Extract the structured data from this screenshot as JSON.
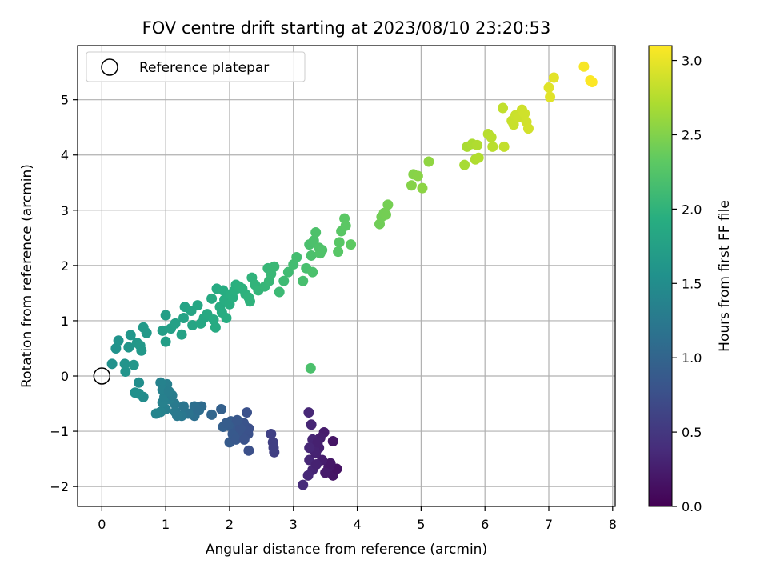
{
  "chart_data": {
    "type": "scatter",
    "title": "FOV centre drift starting at 2023/08/10 23:20:53",
    "xlabel": "Angular distance from reference (arcmin)",
    "ylabel": "Rotation from reference (arcmin)",
    "xlim": [
      -0.38,
      8.04
    ],
    "ylim": [
      -2.36,
      5.98
    ],
    "xticks": [
      0,
      1,
      2,
      3,
      4,
      5,
      6,
      7,
      8
    ],
    "yticks": [
      -2,
      -1,
      0,
      1,
      2,
      3,
      4,
      5
    ],
    "grid": true,
    "legend": {
      "placement": "upper-left",
      "entries": [
        "Reference platepar"
      ]
    },
    "reference_point": {
      "x": 0,
      "y": 0
    },
    "colorbar": {
      "label": "Hours from first FF file",
      "colormap": "viridis",
      "range": [
        0.0,
        3.1
      ],
      "ticks": [
        "0.0",
        "0.5",
        "1.0",
        "1.5",
        "2.0",
        "2.5",
        "3.0"
      ]
    },
    "series": [
      {
        "points": [
          [
            3.62,
            -1.8
          ],
          [
            3.68,
            -1.68
          ],
          [
            3.55,
            -1.65
          ],
          [
            3.5,
            -1.75
          ],
          [
            3.58,
            -1.58
          ],
          [
            3.45,
            -1.52
          ],
          [
            3.62,
            -1.18
          ],
          [
            3.48,
            -1.02
          ],
          [
            3.4,
            -1.3
          ],
          [
            3.15,
            -1.97
          ],
          [
            3.3,
            -1.7
          ],
          [
            3.25,
            -1.52
          ],
          [
            3.42,
            -1.12
          ],
          [
            3.28,
            -0.88
          ],
          [
            3.24,
            -0.66
          ],
          [
            3.35,
            -1.4
          ],
          [
            3.23,
            -1.8
          ],
          [
            3.3,
            -1.15
          ],
          [
            3.27,
            0.14
          ],
          [
            3.33,
            -1.35
          ],
          [
            3.38,
            -1.2
          ],
          [
            3.25,
            -1.3
          ],
          [
            3.36,
            -1.6
          ],
          [
            2.7,
            -1.38
          ],
          [
            2.65,
            -1.05
          ],
          [
            2.68,
            -1.2
          ],
          [
            2.69,
            -1.3
          ],
          [
            2.3,
            -1.35
          ],
          [
            2.29,
            -1.05
          ],
          [
            2.3,
            -0.95
          ],
          [
            2.27,
            -0.66
          ],
          [
            2.22,
            -0.85
          ],
          [
            2.25,
            -0.98
          ],
          [
            2.15,
            -1.1
          ],
          [
            2.08,
            -0.88
          ],
          [
            2.02,
            -0.82
          ],
          [
            1.98,
            -0.9
          ],
          [
            1.9,
            -0.92
          ],
          [
            1.87,
            -0.6
          ],
          [
            2.0,
            -1.2
          ],
          [
            2.05,
            -1.05
          ],
          [
            2.1,
            -1.15
          ],
          [
            2.17,
            -0.95
          ],
          [
            2.23,
            -1.15
          ],
          [
            1.95,
            -0.85
          ],
          [
            2.12,
            -0.8
          ],
          [
            1.72,
            -0.7
          ],
          [
            1.56,
            -0.55
          ],
          [
            1.45,
            -0.55
          ],
          [
            1.45,
            -0.72
          ],
          [
            1.52,
            -0.62
          ],
          [
            1.35,
            -0.68
          ],
          [
            1.25,
            -0.72
          ],
          [
            1.28,
            -0.55
          ],
          [
            1.14,
            -0.5
          ],
          [
            1.15,
            -0.65
          ],
          [
            1.18,
            -0.72
          ],
          [
            1.05,
            -0.42
          ],
          [
            1.0,
            -0.6
          ],
          [
            0.92,
            -0.65
          ],
          [
            0.85,
            -0.68
          ],
          [
            0.95,
            -0.48
          ],
          [
            0.98,
            -0.38
          ],
          [
            1.1,
            -0.35
          ],
          [
            1.02,
            -0.15
          ],
          [
            0.92,
            -0.12
          ],
          [
            0.95,
            -0.25
          ],
          [
            1.05,
            -0.28
          ],
          [
            0.65,
            -0.38
          ],
          [
            0.58,
            -0.32
          ],
          [
            0.52,
            -0.3
          ],
          [
            0.58,
            -0.12
          ],
          [
            0.37,
            0.08
          ],
          [
            0.36,
            0.22
          ],
          [
            0.5,
            0.2
          ],
          [
            0.16,
            0.22
          ],
          [
            0.22,
            0.5
          ],
          [
            0.26,
            0.64
          ],
          [
            0.42,
            0.52
          ],
          [
            0.45,
            0.74
          ],
          [
            0.55,
            0.6
          ],
          [
            0.6,
            0.55
          ],
          [
            0.62,
            0.46
          ],
          [
            0.65,
            0.88
          ],
          [
            0.7,
            0.78
          ],
          [
            0.95,
            0.82
          ],
          [
            1.0,
            0.62
          ],
          [
            1.0,
            1.1
          ],
          [
            1.08,
            0.86
          ],
          [
            1.15,
            0.95
          ],
          [
            1.25,
            0.75
          ],
          [
            1.28,
            1.05
          ],
          [
            1.3,
            1.25
          ],
          [
            1.4,
            1.18
          ],
          [
            1.42,
            0.92
          ],
          [
            1.5,
            1.28
          ],
          [
            1.55,
            0.95
          ],
          [
            1.6,
            1.05
          ],
          [
            1.65,
            1.12
          ],
          [
            1.72,
            1.4
          ],
          [
            1.75,
            1.02
          ],
          [
            1.78,
            0.88
          ],
          [
            1.8,
            1.58
          ],
          [
            1.85,
            1.25
          ],
          [
            1.88,
            1.15
          ],
          [
            1.9,
            1.55
          ],
          [
            1.92,
            1.38
          ],
          [
            1.95,
            1.05
          ],
          [
            2.0,
            1.3
          ],
          [
            2.02,
            1.48
          ],
          [
            2.05,
            1.42
          ],
          [
            2.08,
            1.55
          ],
          [
            2.1,
            1.65
          ],
          [
            2.15,
            1.62
          ],
          [
            2.2,
            1.58
          ],
          [
            2.25,
            1.48
          ],
          [
            2.3,
            1.42
          ],
          [
            2.32,
            1.35
          ],
          [
            2.35,
            1.78
          ],
          [
            2.4,
            1.65
          ],
          [
            2.45,
            1.55
          ],
          [
            2.55,
            1.62
          ],
          [
            2.6,
            1.95
          ],
          [
            2.62,
            1.72
          ],
          [
            2.65,
            1.85
          ],
          [
            2.7,
            1.98
          ],
          [
            2.78,
            1.52
          ],
          [
            2.85,
            1.72
          ],
          [
            2.92,
            1.88
          ],
          [
            3.0,
            2.02
          ],
          [
            3.05,
            2.15
          ],
          [
            3.15,
            1.72
          ],
          [
            3.2,
            1.95
          ],
          [
            3.25,
            2.38
          ],
          [
            3.28,
            2.18
          ],
          [
            3.3,
            1.88
          ],
          [
            3.32,
            2.45
          ],
          [
            3.35,
            2.6
          ],
          [
            3.4,
            2.32
          ],
          [
            3.42,
            2.22
          ],
          [
            3.45,
            2.28
          ],
          [
            3.7,
            2.25
          ],
          [
            3.72,
            2.42
          ],
          [
            3.75,
            2.62
          ],
          [
            3.8,
            2.85
          ],
          [
            3.82,
            2.72
          ],
          [
            3.9,
            2.38
          ],
          [
            4.35,
            2.75
          ],
          [
            4.38,
            2.88
          ],
          [
            4.42,
            2.95
          ],
          [
            4.45,
            2.92
          ],
          [
            4.48,
            3.1
          ],
          [
            4.85,
            3.45
          ],
          [
            4.88,
            3.65
          ],
          [
            4.95,
            3.62
          ],
          [
            5.02,
            3.4
          ],
          [
            5.12,
            3.88
          ],
          [
            5.68,
            3.82
          ],
          [
            5.72,
            4.15
          ],
          [
            5.8,
            4.2
          ],
          [
            5.85,
            3.92
          ],
          [
            5.88,
            4.18
          ],
          [
            5.9,
            3.95
          ],
          [
            6.05,
            4.38
          ],
          [
            6.1,
            4.32
          ],
          [
            6.12,
            4.15
          ],
          [
            6.28,
            4.85
          ],
          [
            6.3,
            4.15
          ],
          [
            6.42,
            4.62
          ],
          [
            6.45,
            4.55
          ],
          [
            6.48,
            4.72
          ],
          [
            6.52,
            4.68
          ],
          [
            6.58,
            4.82
          ],
          [
            6.62,
            4.75
          ],
          [
            6.65,
            4.6
          ],
          [
            6.68,
            4.48
          ],
          [
            7.0,
            5.22
          ],
          [
            7.02,
            5.05
          ],
          [
            7.08,
            5.4
          ],
          [
            7.55,
            5.6
          ],
          [
            7.65,
            5.35
          ],
          [
            7.68,
            5.32
          ]
        ]
      }
    ]
  }
}
